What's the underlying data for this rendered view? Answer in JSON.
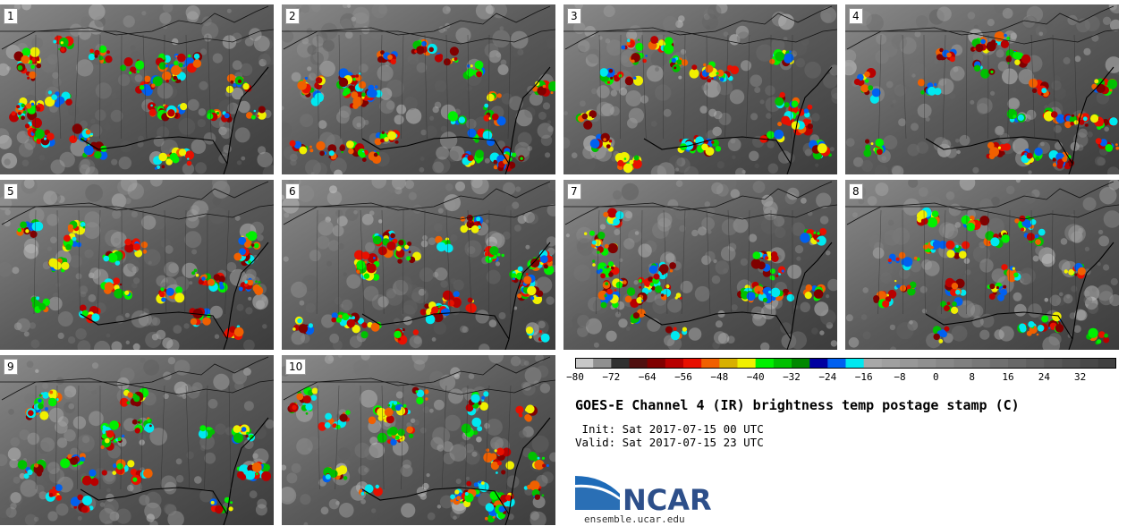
{
  "panels": [
    {
      "label": "1"
    },
    {
      "label": "2"
    },
    {
      "label": "3"
    },
    {
      "label": "4"
    },
    {
      "label": "5"
    },
    {
      "label": "6"
    },
    {
      "label": "7"
    },
    {
      "label": "8"
    },
    {
      "label": "9"
    },
    {
      "label": "10"
    }
  ],
  "colorbar": {
    "min": -80,
    "max": 40,
    "step": 4,
    "tick_labels": [
      "−80",
      "−72",
      "−64",
      "−56",
      "−48",
      "−40",
      "−32",
      "−24",
      "−16",
      "−8",
      "0",
      "8",
      "16",
      "24",
      "32"
    ],
    "tick_values": [
      -80,
      -72,
      -64,
      -56,
      -48,
      -40,
      -32,
      -24,
      -16,
      -8,
      0,
      8,
      16,
      24,
      32
    ],
    "colors": [
      "#c8c8c8",
      "#909090",
      "#303030",
      "#501010",
      "#800000",
      "#b80000",
      "#e81000",
      "#f06000",
      "#d8b000",
      "#f0f000",
      "#00f000",
      "#00c000",
      "#008800",
      "#0000a0",
      "#0060f0",
      "#00e8f0",
      "#a8a8a8",
      "#a0a0a0",
      "#989898",
      "#909090",
      "#888888",
      "#808080",
      "#787878",
      "#707070",
      "#686868",
      "#606060",
      "#585858",
      "#505050",
      "#484848",
      "#404040"
    ]
  },
  "title": "GOES-E Channel 4 (IR) brightness temp postage stamp (C)",
  "init_line": " Init: Sat 2017-07-15 00 UTC",
  "valid_line": "Valid: Sat 2017-07-15 23 UTC",
  "logo": {
    "name": "NCAR",
    "url": "ensemble.ucar.edu"
  }
}
